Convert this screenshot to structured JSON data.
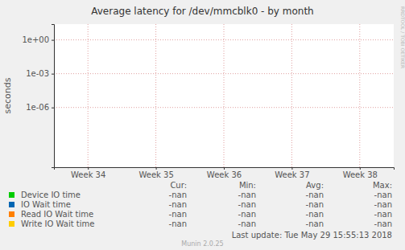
{
  "chart_data": {
    "type": "line",
    "title": "Average latency for /dev/mmcblk0 - by month",
    "y_label": "seconds",
    "categories": [
      "Week 34",
      "Week 35",
      "Week 36",
      "Week 37",
      "Week 38"
    ],
    "series": [
      {
        "name": "Device IO time",
        "color": "#00cc00",
        "values": [
          null,
          null,
          null,
          null,
          null
        ],
        "stats": [
          "-nan",
          "-nan",
          "-nan",
          "-nan"
        ]
      },
      {
        "name": "IO Wait time",
        "color": "#0066b3",
        "values": [
          null,
          null,
          null,
          null,
          null
        ],
        "stats": [
          "-nan",
          "-nan",
          "-nan",
          "-nan"
        ]
      },
      {
        "name": "Read IO Wait time",
        "color": "#ff8000",
        "values": [
          null,
          null,
          null,
          null,
          null
        ],
        "stats": [
          "-nan",
          "-nan",
          "-nan",
          "-nan"
        ]
      },
      {
        "name": "Write IO Wait time",
        "color": "#ffcc00",
        "values": [
          null,
          null,
          null,
          null,
          null
        ],
        "stats": [
          "-nan",
          "-nan",
          "-nan",
          "-nan"
        ]
      }
    ],
    "stat_headers": [
      "Cur:",
      "Min:",
      "Avg:",
      "Max:"
    ],
    "log": "y",
    "grid": true,
    "ylim": [
      5e-12,
      25
    ],
    "yticks": [
      {
        "value": 1e-06,
        "label": "1e-06"
      },
      {
        "value": 0.001,
        "label": "1e-03"
      },
      {
        "value": 1,
        "label": "1e+00"
      }
    ],
    "footer": "Last update: Tue May 29 15:55:13 2018",
    "generator": "Munin 2.0.25",
    "watermark": "RRDTOOL / TOBI OETIKER"
  }
}
